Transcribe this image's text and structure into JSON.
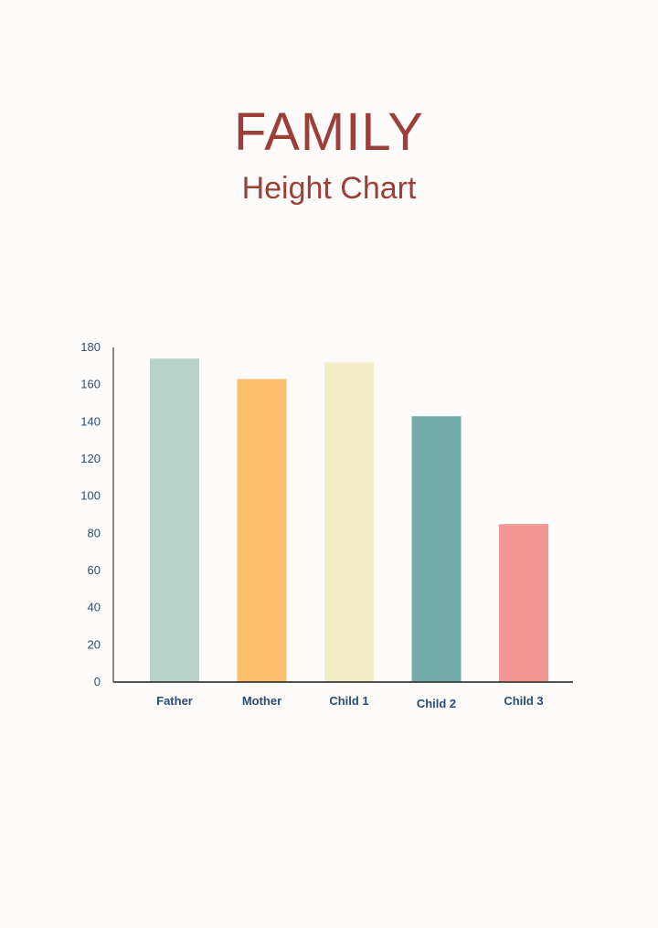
{
  "header": {
    "title": "FAMILY",
    "subtitle": "Height Chart"
  },
  "colors": {
    "title": "#9c3f38",
    "axis_text": "#2b4c76",
    "axis_line": "#3a3a3a"
  },
  "chart_data": {
    "type": "bar",
    "title": "FAMILY",
    "subtitle": "Height Chart",
    "xlabel": "",
    "ylabel": "",
    "categories": [
      "Father",
      "Mother",
      "Child 1",
      "Child 2",
      "Child 3"
    ],
    "values": [
      174,
      163,
      172,
      143,
      85
    ],
    "bar_colors": [
      "#b6d2c9",
      "#fdbe6e",
      "#f3eec7",
      "#72ada7",
      "#f39590"
    ],
    "ylim": [
      0,
      180
    ],
    "yticks": [
      "0",
      "20",
      "40",
      "60",
      "80",
      "100",
      "120",
      "140",
      "160",
      "180"
    ],
    "grid": false,
    "legend": "none"
  }
}
